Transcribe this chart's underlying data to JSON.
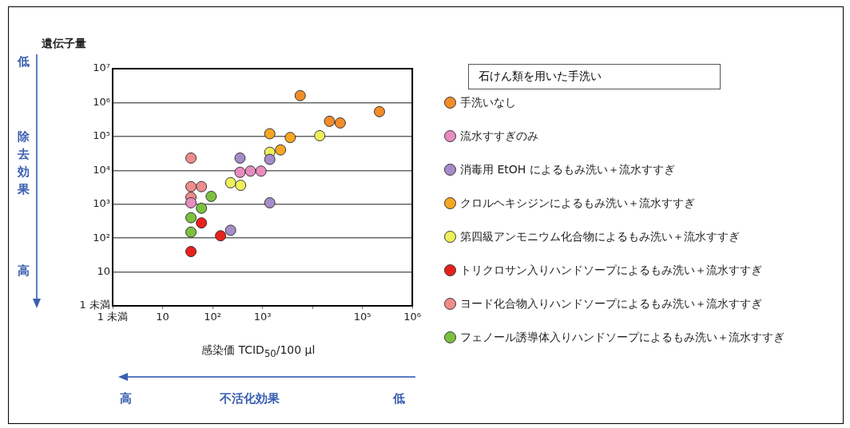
{
  "chart_data": {
    "type": "scatter",
    "ylabel": "遺伝子量",
    "xlabel": "感染価 TCID$_{50}$/100 μl",
    "legend_title": "石けん類を用いた手洗い",
    "log": "xy",
    "grid": "y",
    "legend": "right",
    "marker": "circle",
    "xlim": [
      1,
      1000000
    ],
    "ylim": [
      1,
      10000000
    ],
    "xticks": [
      {
        "value": 1,
        "label": "1 未満"
      },
      10,
      {
        "value": 100,
        "label": "10²"
      },
      {
        "value": 1000,
        "label": "10³"
      },
      {
        "value": 10000,
        "label": null
      },
      {
        "value": 100000,
        "label": "10⁵"
      },
      {
        "value": 1000000,
        "label": "10⁶"
      }
    ],
    "yticks": [
      {
        "value": 1,
        "label": "1 未満"
      },
      10,
      {
        "value": 100,
        "label": "10²"
      },
      {
        "value": 1000,
        "label": "10³"
      },
      {
        "value": 10000,
        "label": "10⁴"
      },
      {
        "value": 100000,
        "label": "10⁵"
      },
      {
        "value": 1000000,
        "label": "10⁶"
      },
      {
        "value": 10000000,
        "label": "10⁷"
      }
    ],
    "series": [
      {
        "name": "手洗いなし",
        "color": "#f28c28",
        "x": [
          5700,
          22000,
          36000,
          220000
        ],
        "values": [
          1600000,
          280000,
          250000,
          540000
        ]
      },
      {
        "name": "流水すすぎのみ",
        "color": "#e88cc0",
        "x": [
          355,
          575,
          935,
          37
        ],
        "values": [
          8700,
          9500,
          9500,
          1100
        ]
      },
      {
        "name": "消毒用 EtOH によるもみ洗い＋流水すすぎ",
        "color": "#a58cc8",
        "x": [
          355,
          1400,
          1400,
          230
        ],
        "values": [
          23000,
          21000,
          1100,
          170
        ]
      },
      {
        "name": "クロルヘキシジンによるもみ洗い＋流水すすぎ",
        "color": "#f5a623",
        "x": [
          1400,
          3600,
          2300
        ],
        "values": [
          120000,
          93000,
          40000
        ]
      },
      {
        "name": "第四級アンモニウム化合物によるもみ洗い＋流水すすぎ",
        "color": "#eef05a",
        "x": [
          14000,
          1400,
          230,
          365
        ],
        "values": [
          105000,
          34000,
          4300,
          3600
        ]
      },
      {
        "name": "トリクロサン入りハンドソープによるもみ洗い＋流水すすぎ",
        "color": "#e8201c",
        "x": [
          60,
          145,
          37
        ],
        "values": [
          280,
          117,
          40
        ]
      },
      {
        "name": "ヨード化合物入りハンドソープによるもみ洗い＋流水すすぎ",
        "color": "#f08c8c",
        "x": [
          37,
          37,
          60,
          37
        ],
        "values": [
          23000,
          3300,
          3300,
          1600
        ]
      },
      {
        "name": "フェノール誘導体入りハンドソープによるもみ洗い＋流水すすぎ",
        "color": "#7cc040",
        "x": [
          94,
          60,
          37,
          37
        ],
        "values": [
          1700,
          760,
          400,
          150
        ]
      }
    ],
    "annotations": [
      "低",
      "除去効果",
      "高",
      "高",
      "不活化効果",
      "低"
    ]
  }
}
